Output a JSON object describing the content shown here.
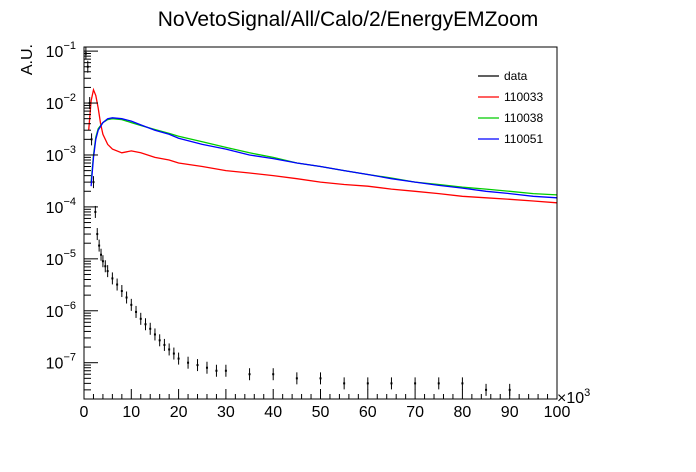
{
  "chart_data": {
    "type": "line",
    "title": "NoVetoSignal/All/Calo/2/EnergyEMZoom",
    "xlabel": "",
    "ylabel": "A.U.",
    "x_multiplier_label": "×10",
    "x_multiplier_exponent": "3",
    "xlim": [
      0,
      100
    ],
    "ylim": [
      2e-08,
      0.12
    ],
    "yscale": "log",
    "grid": false,
    "legend_position": "top-right",
    "x_ticks": [
      {
        "value": 0,
        "label": "0"
      },
      {
        "value": 10,
        "label": "10"
      },
      {
        "value": 20,
        "label": "20"
      },
      {
        "value": 30,
        "label": "30"
      },
      {
        "value": 40,
        "label": "40"
      },
      {
        "value": 50,
        "label": "50"
      },
      {
        "value": 60,
        "label": "60"
      },
      {
        "value": 70,
        "label": "70"
      },
      {
        "value": 80,
        "label": "80"
      },
      {
        "value": 90,
        "label": "90"
      },
      {
        "value": 100,
        "label": "100"
      }
    ],
    "y_ticks": [
      {
        "value": 1e-07,
        "base": "10",
        "exp": "−7"
      },
      {
        "value": 1e-06,
        "base": "10",
        "exp": "−6"
      },
      {
        "value": 1e-05,
        "base": "10",
        "exp": "−5"
      },
      {
        "value": 0.0001,
        "base": "10",
        "exp": "−4"
      },
      {
        "value": 0.001,
        "base": "10",
        "exp": "−3"
      },
      {
        "value": 0.01,
        "base": "10",
        "exp": "−2"
      },
      {
        "value": 0.1,
        "base": "10",
        "exp": "−1"
      }
    ],
    "series": [
      {
        "name": "data",
        "color": "#000000",
        "style": "points",
        "x": [
          0.4,
          0.8,
          1.2,
          1.6,
          2.0,
          2.4,
          2.8,
          3.2,
          3.6,
          4.0,
          4.5,
          5.0,
          6.0,
          7.0,
          8.0,
          9.0,
          10.0,
          11.0,
          12.0,
          13.0,
          14.0,
          15.0,
          16.0,
          17.0,
          18.0,
          19.0,
          20.0,
          22.0,
          24.0,
          26.0,
          28.0,
          30.0,
          35.0,
          40.0,
          45.0,
          50.0,
          55.0,
          60.0,
          65.0,
          70.0,
          75.0,
          80.0,
          85.0,
          90.0
        ],
        "values": [
          0.09,
          0.05,
          0.01,
          0.002,
          0.0003,
          8e-05,
          3e-05,
          1.8e-05,
          1.2e-05,
          9e-06,
          7.2e-06,
          5.8e-06,
          4.2e-06,
          3.2e-06,
          2.4e-06,
          1.8e-06,
          1.3e-06,
          9.5e-07,
          7e-07,
          5.5e-07,
          4.5e-07,
          3.5e-07,
          2.7e-07,
          2.2e-07,
          1.8e-07,
          1.5e-07,
          1.2e-07,
          1e-07,
          9e-08,
          8e-08,
          7e-08,
          7e-08,
          6e-08,
          6e-08,
          5e-08,
          5e-08,
          4e-08,
          4e-08,
          4e-08,
          4e-08,
          4e-08,
          4e-08,
          3e-08,
          3e-08
        ]
      },
      {
        "name": "110033",
        "color": "#ff0000",
        "style": "line",
        "x": [
          1.0,
          1.5,
          2.0,
          2.5,
          3.0,
          3.5,
          4.0,
          5.0,
          6.0,
          8.0,
          10.0,
          12.0,
          15.0,
          18.0,
          20.0,
          25.0,
          30.0,
          35.0,
          40.0,
          45.0,
          50.0,
          55.0,
          60.0,
          65.0,
          70.0,
          75.0,
          80.0,
          85.0,
          90.0,
          95.0,
          100.0
        ],
        "values": [
          0.003,
          0.011,
          0.018,
          0.014,
          0.008,
          0.004,
          0.0025,
          0.0016,
          0.0013,
          0.0011,
          0.0012,
          0.0011,
          0.0009,
          0.0008,
          0.0007,
          0.0006,
          0.0005,
          0.00045,
          0.0004,
          0.00035,
          0.0003,
          0.00027,
          0.00025,
          0.00022,
          0.0002,
          0.00018,
          0.00016,
          0.00015,
          0.00014,
          0.00013,
          0.00012
        ]
      },
      {
        "name": "110038",
        "color": "#00cc00",
        "style": "line",
        "x": [
          1.5,
          2.0,
          2.5,
          3.0,
          4.0,
          5.0,
          6.0,
          8.0,
          10.0,
          12.0,
          15.0,
          18.0,
          20.0,
          25.0,
          30.0,
          35.0,
          40.0,
          45.0,
          50.0,
          55.0,
          60.0,
          65.0,
          70.0,
          75.0,
          80.0,
          85.0,
          90.0,
          95.0,
          100.0
        ],
        "values": [
          0.0003,
          0.001,
          0.0022,
          0.0032,
          0.0042,
          0.0048,
          0.005,
          0.0048,
          0.0042,
          0.0037,
          0.0031,
          0.0026,
          0.0023,
          0.0018,
          0.0014,
          0.0011,
          0.0009,
          0.0007,
          0.0006,
          0.0005,
          0.00042,
          0.00036,
          0.0003,
          0.00027,
          0.00024,
          0.00022,
          0.0002,
          0.00018,
          0.00017
        ]
      },
      {
        "name": "110051",
        "color": "#0000ff",
        "style": "line",
        "x": [
          1.5,
          2.0,
          2.5,
          3.0,
          4.0,
          5.0,
          6.0,
          8.0,
          10.0,
          12.0,
          15.0,
          18.0,
          20.0,
          25.0,
          30.0,
          35.0,
          40.0,
          45.0,
          50.0,
          55.0,
          60.0,
          65.0,
          70.0,
          75.0,
          80.0,
          85.0,
          90.0,
          95.0,
          100.0
        ],
        "values": [
          0.00025,
          0.0009,
          0.002,
          0.003,
          0.0042,
          0.005,
          0.0052,
          0.005,
          0.0045,
          0.0038,
          0.003,
          0.0025,
          0.0021,
          0.0016,
          0.0013,
          0.001,
          0.00085,
          0.0007,
          0.0006,
          0.0005,
          0.00042,
          0.00035,
          0.0003,
          0.00026,
          0.00023,
          0.0002,
          0.00018,
          0.00016,
          0.00015
        ]
      }
    ]
  }
}
